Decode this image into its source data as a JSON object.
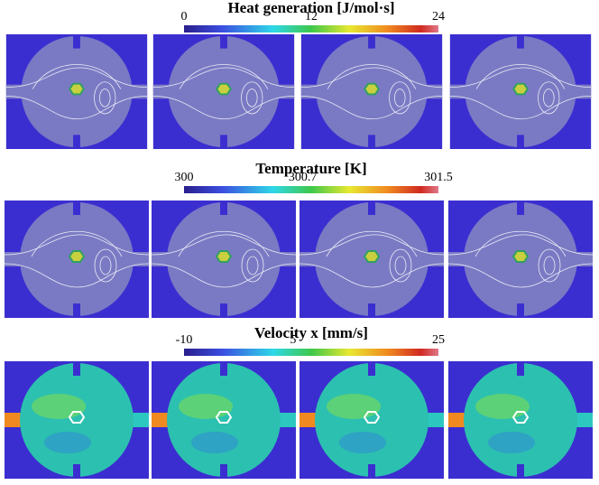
{
  "rows": [
    {
      "title": "Heat generation [J/mol·s]",
      "ticks": [
        0,
        12,
        24
      ]
    },
    {
      "title": "Temperature [K]",
      "ticks": [
        300,
        300.7,
        301.5
      ]
    },
    {
      "title": "Velocity x [mm/s]",
      "ticks": [
        -10,
        5,
        25
      ]
    }
  ]
}
